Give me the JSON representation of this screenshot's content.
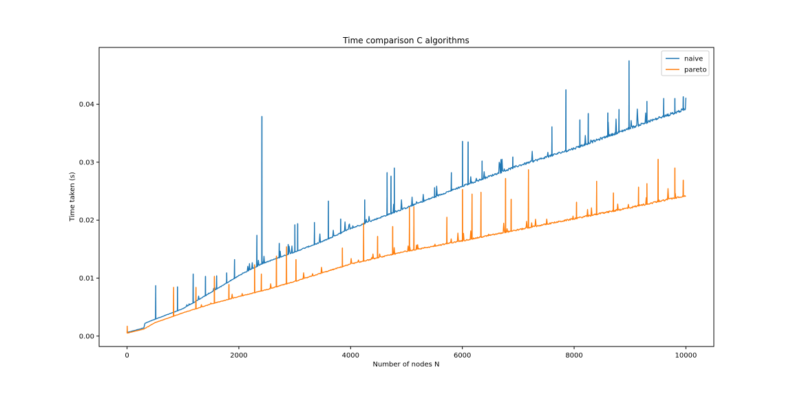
{
  "chart_data": {
    "type": "line",
    "title": "Time comparison C algorithms",
    "xlabel": "Number of nodes N",
    "ylabel": "Time taken (s)",
    "xlim": [
      -500,
      10500
    ],
    "ylim": [
      -0.0018,
      0.0498
    ],
    "xticks": [
      0,
      2000,
      4000,
      6000,
      8000,
      10000
    ],
    "xtick_labels": [
      "0",
      "2000",
      "4000",
      "6000",
      "8000",
      "10000"
    ],
    "yticks": [
      0.0,
      0.01,
      0.02,
      0.03,
      0.04
    ],
    "ytick_labels": [
      "0.00",
      "0.01",
      "0.02",
      "0.03",
      "0.04"
    ],
    "grid": false,
    "legend_position": "top-right",
    "series": [
      {
        "name": "naive",
        "color": "#1f77b4",
        "x": [
          0,
          300,
          320,
          500,
          1000,
          1500,
          2000,
          2400,
          3000,
          3500,
          4000,
          5000,
          6000,
          7000,
          8000,
          9000,
          10000
        ],
        "y": [
          0.0006,
          0.0014,
          0.0022,
          0.0029,
          0.0047,
          0.0075,
          0.0104,
          0.0124,
          0.0145,
          0.0163,
          0.0185,
          0.0221,
          0.0258,
          0.0293,
          0.0323,
          0.0358,
          0.0391
        ],
        "spikes": [
          [
            510,
            0.0087
          ],
          [
            900,
            0.0085
          ],
          [
            1180,
            0.0107
          ],
          [
            1400,
            0.0103
          ],
          [
            1600,
            0.0104
          ],
          [
            1780,
            0.0109
          ],
          [
            1920,
            0.0132
          ],
          [
            2320,
            0.0174
          ],
          [
            2410,
            0.0379
          ],
          [
            2720,
            0.016
          ],
          [
            2880,
            0.0158
          ],
          [
            3000,
            0.0192
          ],
          [
            3050,
            0.0194
          ],
          [
            3350,
            0.0196
          ],
          [
            3600,
            0.0233
          ],
          [
            3820,
            0.0202
          ],
          [
            4250,
            0.0235
          ],
          [
            4650,
            0.0282
          ],
          [
            4720,
            0.0276
          ],
          [
            4780,
            0.029
          ],
          [
            5500,
            0.0256
          ],
          [
            5800,
            0.0282
          ],
          [
            6000,
            0.0336
          ],
          [
            6100,
            0.0335
          ],
          [
            6350,
            0.0302
          ],
          [
            6800,
            0.0287
          ],
          [
            6900,
            0.0309
          ],
          [
            7600,
            0.0361
          ],
          [
            7850,
            0.0425
          ],
          [
            8100,
            0.0373
          ],
          [
            8250,
            0.0384
          ],
          [
            8600,
            0.0385
          ],
          [
            8800,
            0.0391
          ],
          [
            8980,
            0.0475
          ],
          [
            9300,
            0.0405
          ],
          [
            9600,
            0.041
          ],
          [
            9800,
            0.041
          ],
          [
            9950,
            0.0413
          ]
        ]
      },
      {
        "name": "pareto",
        "color": "#ff7f0e",
        "x": [
          0,
          300,
          500,
          1000,
          1500,
          2000,
          2500,
          3000,
          3500,
          4000,
          5000,
          6000,
          7000,
          8000,
          9000,
          10000
        ],
        "y": [
          0.0005,
          0.0012,
          0.0023,
          0.004,
          0.0055,
          0.0068,
          0.008,
          0.0094,
          0.0109,
          0.0124,
          0.0146,
          0.0164,
          0.0183,
          0.0202,
          0.0221,
          0.0242
        ],
        "spikes": [
          [
            0,
            0.0017
          ],
          [
            830,
            0.0084
          ],
          [
            1230,
            0.0084
          ],
          [
            1560,
            0.0103
          ],
          [
            1820,
            0.0089
          ],
          [
            2280,
            0.0123
          ],
          [
            2400,
            0.0107
          ],
          [
            2670,
            0.0138
          ],
          [
            2850,
            0.0154
          ],
          [
            3020,
            0.0132
          ],
          [
            3850,
            0.0152
          ],
          [
            4230,
            0.0195
          ],
          [
            4480,
            0.0172
          ],
          [
            4750,
            0.0189
          ],
          [
            5050,
            0.0222
          ],
          [
            5130,
            0.0223
          ],
          [
            5720,
            0.0205
          ],
          [
            6000,
            0.0253
          ],
          [
            6170,
            0.0245
          ],
          [
            6330,
            0.0248
          ],
          [
            6770,
            0.0272
          ],
          [
            6870,
            0.0236
          ],
          [
            7180,
            0.0287
          ],
          [
            8040,
            0.0231
          ],
          [
            8400,
            0.0267
          ],
          [
            8700,
            0.0247
          ],
          [
            9150,
            0.0257
          ],
          [
            9300,
            0.0263
          ],
          [
            9500,
            0.0305
          ],
          [
            9800,
            0.029
          ],
          [
            9950,
            0.0269
          ]
        ]
      }
    ]
  }
}
